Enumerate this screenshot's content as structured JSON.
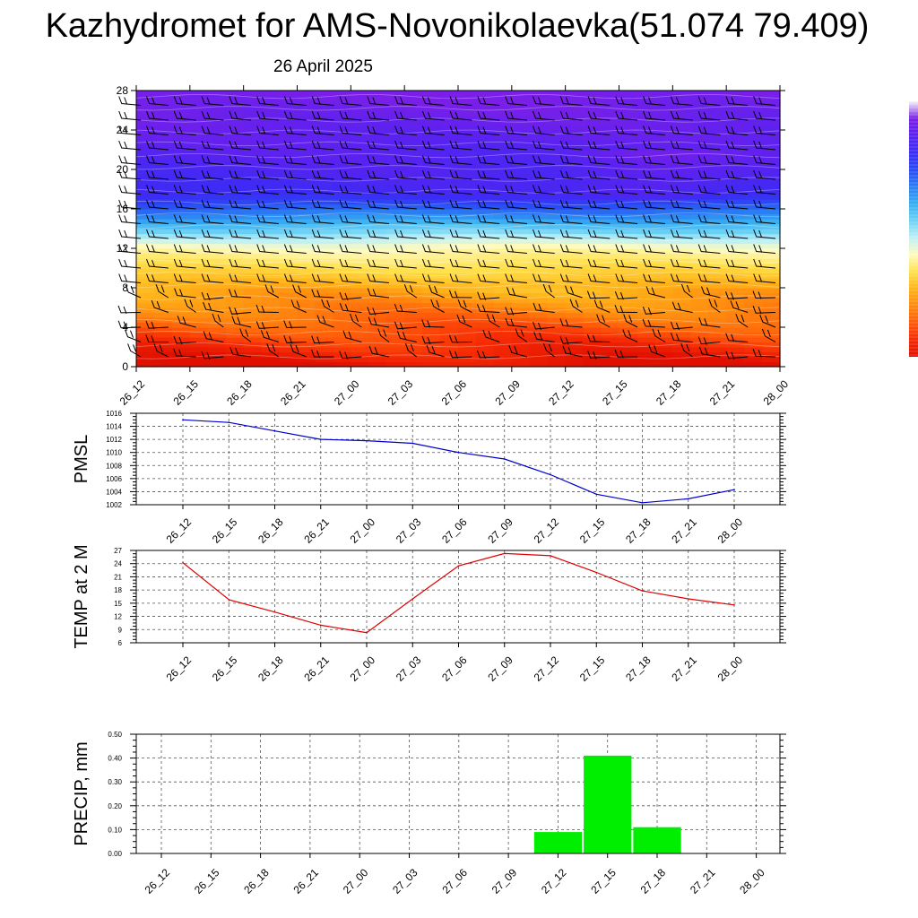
{
  "title": "Kazhydromet for AMS-Novonikolaevka(51.074 79.409)",
  "subtitle": "26 April 2025",
  "time_labels": [
    "26_12",
    "26_15",
    "26_18",
    "26_21",
    "27_00",
    "27_03",
    "27_06",
    "27_09",
    "27_12",
    "27_15",
    "27_18",
    "27_21",
    "28_00"
  ],
  "colors": {
    "pmsl_line": "#0000cc",
    "temp_line": "#e00000",
    "precip_bar": "#00ee00",
    "grid": "#555555"
  },
  "chart_data": [
    {
      "type": "heatmap",
      "title": "",
      "xlabel": "",
      "ylabel": "",
      "x": [
        "26_12",
        "26_15",
        "26_18",
        "26_21",
        "27_00",
        "27_03",
        "27_06",
        "27_09",
        "27_12",
        "27_15",
        "27_18",
        "27_21",
        "28_00"
      ],
      "ylim": [
        0,
        28
      ],
      "yticks": [
        0,
        4,
        8,
        12,
        16,
        20,
        24,
        28
      ],
      "colormap": [
        "#7a1fe8",
        "#5a22f0",
        "#3b2cf5",
        "#2a4af5",
        "#2a7ef2",
        "#37aef2",
        "#6dd2f5",
        "#bff0f5",
        "#fffbc0",
        "#ffe14d",
        "#ffb319",
        "#ff8a0f",
        "#ff5a0a",
        "#f52a05",
        "#e01000"
      ],
      "colorbar": "right",
      "has_wind_barbs": true
    },
    {
      "type": "line",
      "ylabel": "PMSL",
      "x": [
        "26_12",
        "26_15",
        "26_18",
        "26_21",
        "27_00",
        "27_03",
        "27_06",
        "27_09",
        "27_12",
        "27_15",
        "27_18",
        "27_21",
        "28_00"
      ],
      "values": [
        1015.0,
        1014.6,
        1013.3,
        1012.0,
        1011.8,
        1011.4,
        1010.0,
        1009.0,
        1006.6,
        1003.6,
        1002.3,
        1002.9,
        1004.3
      ],
      "ylim": [
        1002,
        1016
      ],
      "yticks": [
        1002,
        1004,
        1006,
        1008,
        1010,
        1012,
        1014,
        1016
      ],
      "grid": true
    },
    {
      "type": "line",
      "ylabel": "TEMP at 2 M",
      "x": [
        "26_12",
        "26_15",
        "26_18",
        "26_21",
        "27_00",
        "27_03",
        "27_06",
        "27_09",
        "27_12",
        "27_15",
        "27_18",
        "27_21",
        "28_00"
      ],
      "values": [
        24.2,
        15.8,
        13.0,
        10.0,
        8.3,
        16.0,
        23.5,
        26.3,
        25.8,
        22.0,
        17.8,
        16.0,
        14.6
      ],
      "ylim": [
        6,
        27
      ],
      "yticks": [
        6,
        9,
        12,
        15,
        18,
        21,
        24,
        27
      ],
      "grid": true
    },
    {
      "type": "bar",
      "ylabel": "PRECIP, mm",
      "categories": [
        "26_12",
        "26_15",
        "26_18",
        "26_21",
        "27_00",
        "27_03",
        "27_06",
        "27_09",
        "27_12",
        "27_15",
        "27_18",
        "27_21",
        "28_00"
      ],
      "values": [
        0,
        0,
        0,
        0,
        0,
        0,
        0,
        0,
        0.09,
        0.41,
        0.11,
        0,
        0
      ],
      "ylim": [
        0,
        0.5
      ],
      "yticks": [
        "0.00",
        "0.10",
        "0.20",
        "0.30",
        "0.40",
        "0.50"
      ],
      "grid": true
    }
  ]
}
